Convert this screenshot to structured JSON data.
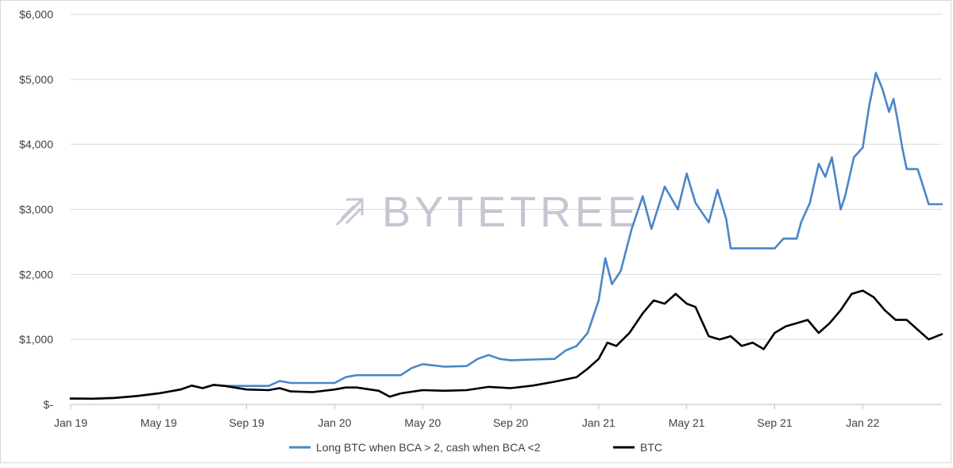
{
  "colors": {
    "strategy": "#4a86c8",
    "btc": "#000000",
    "grid": "#d9d9d9",
    "watermark": "#c7c5d2"
  },
  "watermark": {
    "text": "BYTETREE",
    "icon": "arrow-icon"
  },
  "chart_data": {
    "type": "line",
    "title": "",
    "xlabel": "",
    "ylabel": "",
    "ylim": [
      0,
      6000
    ],
    "yticks": [
      0,
      1000,
      2000,
      3000,
      4000,
      5000,
      6000
    ],
    "ytick_labels": [
      "$-",
      "$1,000",
      "$2,000",
      "$3,000",
      "$4,000",
      "$5,000",
      "$6,000"
    ],
    "xlim": [
      0,
      39.6
    ],
    "xtick_positions": [
      0,
      4,
      8,
      12,
      16,
      20,
      24,
      28,
      32,
      36
    ],
    "xtick_labels": [
      "Jan 19",
      "May 19",
      "Sep 19",
      "Jan 20",
      "May 20",
      "Sep 20",
      "Jan 21",
      "May 21",
      "Sep 21",
      "Jan 22"
    ],
    "x_unit": "months since Jan 2019",
    "grid": true,
    "legend": "bottom",
    "series": [
      {
        "name": "Long BTC when BCA > 2, cash when BCA <2",
        "color": "#4a86c8",
        "points": [
          [
            0,
            90
          ],
          [
            1,
            88
          ],
          [
            2,
            100
          ],
          [
            3,
            130
          ],
          [
            4,
            170
          ],
          [
            4.5,
            200
          ],
          [
            5,
            230
          ],
          [
            5.5,
            290
          ],
          [
            6,
            250
          ],
          [
            6.5,
            300
          ],
          [
            7,
            285
          ],
          [
            8,
            285
          ],
          [
            9,
            285
          ],
          [
            9.5,
            360
          ],
          [
            10,
            330
          ],
          [
            11,
            330
          ],
          [
            12,
            330
          ],
          [
            12.5,
            420
          ],
          [
            13,
            450
          ],
          [
            14,
            450
          ],
          [
            15,
            450
          ],
          [
            15.5,
            560
          ],
          [
            16,
            620
          ],
          [
            17,
            580
          ],
          [
            18,
            590
          ],
          [
            18.5,
            700
          ],
          [
            19,
            760
          ],
          [
            19.5,
            700
          ],
          [
            20,
            680
          ],
          [
            21,
            690
          ],
          [
            22,
            700
          ],
          [
            22.5,
            830
          ],
          [
            23,
            900
          ],
          [
            23.5,
            1100
          ],
          [
            24,
            1600
          ],
          [
            24.3,
            2250
          ],
          [
            24.6,
            1850
          ],
          [
            25,
            2050
          ],
          [
            25.5,
            2700
          ],
          [
            26,
            3200
          ],
          [
            26.4,
            2700
          ],
          [
            27,
            3350
          ],
          [
            27.6,
            3000
          ],
          [
            28,
            3550
          ],
          [
            28.4,
            3100
          ],
          [
            29,
            2800
          ],
          [
            29.4,
            3300
          ],
          [
            29.8,
            2850
          ],
          [
            30,
            2400
          ],
          [
            31,
            2400
          ],
          [
            32,
            2400
          ],
          [
            32.4,
            2550
          ],
          [
            33,
            2550
          ],
          [
            33.2,
            2800
          ],
          [
            33.6,
            3100
          ],
          [
            34,
            3700
          ],
          [
            34.3,
            3500
          ],
          [
            34.6,
            3800
          ],
          [
            35,
            3000
          ],
          [
            35.2,
            3200
          ],
          [
            35.6,
            3800
          ],
          [
            36,
            3950
          ],
          [
            36.3,
            4600
          ],
          [
            36.6,
            5100
          ],
          [
            36.9,
            4850
          ],
          [
            37.2,
            4500
          ],
          [
            37.4,
            4700
          ],
          [
            37.6,
            4350
          ],
          [
            37.8,
            3950
          ],
          [
            38,
            3620
          ],
          [
            38.5,
            3620
          ],
          [
            38.8,
            3300
          ],
          [
            39,
            3080
          ],
          [
            39.6,
            3080
          ]
        ]
      },
      {
        "name": "BTC",
        "color": "#000000",
        "points": [
          [
            0,
            90
          ],
          [
            1,
            88
          ],
          [
            2,
            100
          ],
          [
            3,
            130
          ],
          [
            4,
            170
          ],
          [
            4.5,
            200
          ],
          [
            5,
            230
          ],
          [
            5.5,
            290
          ],
          [
            6,
            250
          ],
          [
            6.5,
            300
          ],
          [
            7,
            285
          ],
          [
            8,
            230
          ],
          [
            9,
            220
          ],
          [
            9.5,
            250
          ],
          [
            10,
            200
          ],
          [
            11,
            190
          ],
          [
            12,
            230
          ],
          [
            12.5,
            260
          ],
          [
            13,
            260
          ],
          [
            14,
            210
          ],
          [
            14.5,
            120
          ],
          [
            15,
            170
          ],
          [
            16,
            220
          ],
          [
            17,
            210
          ],
          [
            18,
            220
          ],
          [
            19,
            270
          ],
          [
            20,
            250
          ],
          [
            21,
            290
          ],
          [
            22,
            350
          ],
          [
            23,
            420
          ],
          [
            23.5,
            550
          ],
          [
            24,
            700
          ],
          [
            24.4,
            950
          ],
          [
            24.8,
            900
          ],
          [
            25.4,
            1100
          ],
          [
            26,
            1400
          ],
          [
            26.5,
            1600
          ],
          [
            27,
            1550
          ],
          [
            27.5,
            1700
          ],
          [
            28,
            1550
          ],
          [
            28.4,
            1500
          ],
          [
            29,
            1050
          ],
          [
            29.5,
            1000
          ],
          [
            30,
            1050
          ],
          [
            30.5,
            900
          ],
          [
            31,
            950
          ],
          [
            31.5,
            850
          ],
          [
            32,
            1100
          ],
          [
            32.5,
            1200
          ],
          [
            33,
            1250
          ],
          [
            33.5,
            1300
          ],
          [
            34,
            1100
          ],
          [
            34.5,
            1250
          ],
          [
            35,
            1450
          ],
          [
            35.5,
            1700
          ],
          [
            36,
            1750
          ],
          [
            36.5,
            1650
          ],
          [
            37,
            1450
          ],
          [
            37.5,
            1300
          ],
          [
            38,
            1300
          ],
          [
            38.5,
            1150
          ],
          [
            39,
            1000
          ],
          [
            39.6,
            1080
          ]
        ]
      }
    ]
  }
}
